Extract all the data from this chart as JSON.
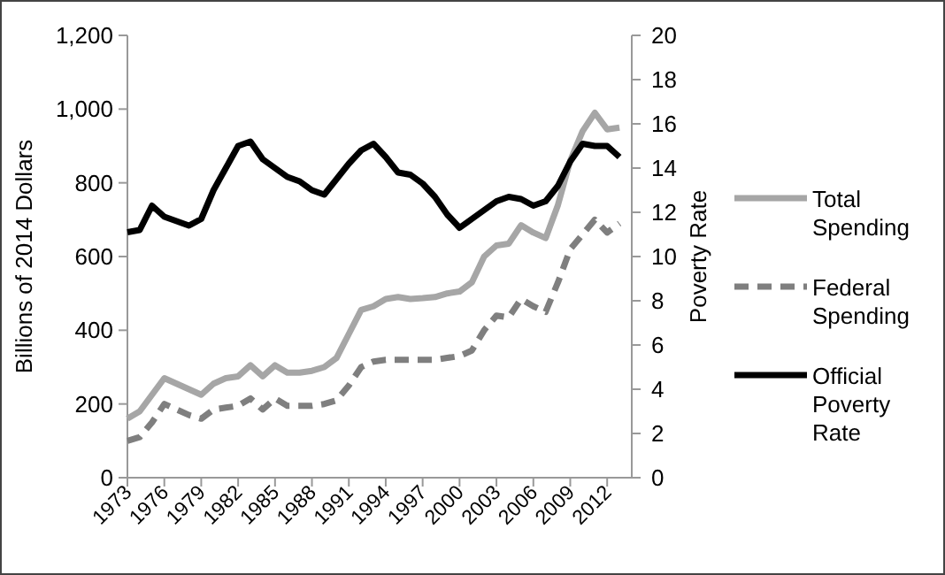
{
  "chart_data": {
    "type": "line",
    "ylabel": "Billions of 2014 Dollars",
    "y2label": "Poverty Rate",
    "x": [
      1973,
      1974,
      1975,
      1976,
      1977,
      1978,
      1979,
      1980,
      1981,
      1982,
      1983,
      1984,
      1985,
      1986,
      1987,
      1988,
      1989,
      1990,
      1991,
      1992,
      1993,
      1994,
      1995,
      1996,
      1997,
      1998,
      1999,
      2000,
      2001,
      2002,
      2003,
      2004,
      2005,
      2006,
      2007,
      2008,
      2009,
      2010,
      2011,
      2012,
      2013
    ],
    "xlim": [
      1973,
      2014
    ],
    "xticks": [
      1973,
      1976,
      1979,
      1982,
      1985,
      1988,
      1991,
      1994,
      1997,
      2000,
      2003,
      2006,
      2009,
      2012
    ],
    "ylim": [
      0,
      1200
    ],
    "yticks": [
      {
        "value": 0,
        "label": "0"
      },
      {
        "value": 200,
        "label": "200"
      },
      {
        "value": 400,
        "label": "400"
      },
      {
        "value": 600,
        "label": "600"
      },
      {
        "value": 800,
        "label": "800"
      },
      {
        "value": 1000,
        "label": "1,000"
      },
      {
        "value": 1200,
        "label": "1,200"
      }
    ],
    "y2lim": [
      0,
      20
    ],
    "y2ticks": [
      0,
      2,
      4,
      6,
      8,
      10,
      12,
      14,
      16,
      18,
      20
    ],
    "legend": "right",
    "grid": false,
    "marker": "none",
    "series": [
      {
        "name": "Total Spending",
        "color": "#a6a6a6",
        "line_style": "solid",
        "values": [
          160,
          180,
          225,
          270,
          255,
          240,
          225,
          255,
          270,
          275,
          305,
          275,
          305,
          285,
          285,
          290,
          300,
          325,
          390,
          455,
          465,
          485,
          490,
          485,
          487,
          490,
          500,
          505,
          530,
          600,
          630,
          635,
          685,
          665,
          650,
          740,
          860,
          940,
          990,
          945,
          950
        ]
      },
      {
        "name": "Federal Spending",
        "color": "#7f7f7f",
        "line_style": "dashed",
        "values": [
          100,
          110,
          150,
          200,
          185,
          170,
          160,
          185,
          190,
          195,
          215,
          185,
          215,
          195,
          195,
          195,
          200,
          210,
          250,
          300,
          315,
          320,
          320,
          320,
          320,
          320,
          325,
          330,
          345,
          400,
          440,
          435,
          485,
          465,
          450,
          530,
          620,
          660,
          700,
          665,
          690
        ]
      },
      {
        "name": "Official Poverty Rate",
        "color": "#000000",
        "line_style": "solid",
        "axis": "y2",
        "values": [
          11.1,
          11.2,
          12.3,
          11.8,
          11.6,
          11.4,
          11.7,
          13.0,
          14.0,
          15.0,
          15.2,
          14.4,
          14.0,
          13.6,
          13.4,
          13.0,
          12.8,
          13.5,
          14.2,
          14.8,
          15.1,
          14.5,
          13.8,
          13.7,
          13.3,
          12.7,
          11.9,
          11.3,
          11.7,
          12.1,
          12.5,
          12.7,
          12.6,
          12.3,
          12.5,
          13.2,
          14.3,
          15.1,
          15.0,
          15.0,
          14.5
        ]
      }
    ]
  }
}
